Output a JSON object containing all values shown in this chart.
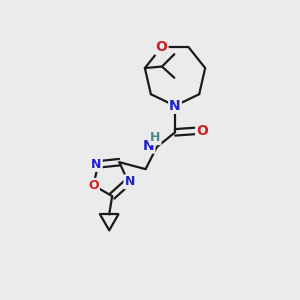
{
  "bg_color": "#ebebeb",
  "bond_color": "#1a1a1a",
  "N_color": "#2222cc",
  "O_color": "#cc2222",
  "H_color": "#4a8a8a",
  "bond_width": 1.6,
  "font_size": 10,
  "fig_size": [
    3.0,
    3.0
  ],
  "dpi": 100,
  "xlim": [
    0,
    10
  ],
  "ylim": [
    0,
    10
  ]
}
